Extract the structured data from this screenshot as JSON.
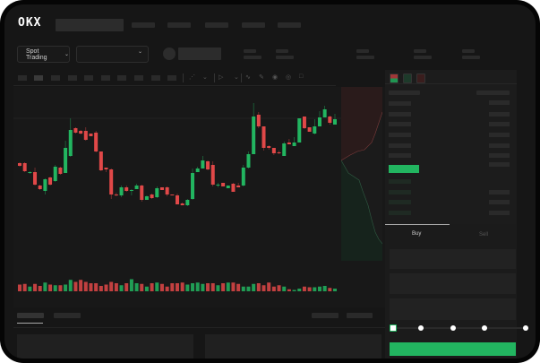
{
  "header": {
    "logo_text": "OKX",
    "trading_mode_label": "Spot Trading",
    "colors": {
      "green": "#22b560",
      "red": "#e04848",
      "background": "#161616"
    }
  },
  "toolbar": {
    "icons": [
      "indicator-icon",
      "chevron-down-icon",
      "drawing-icon",
      "chevron-down-icon",
      "line-icon",
      "ruler-icon",
      "camera-icon",
      "settings-icon",
      "fullscreen-icon"
    ]
  },
  "orderbook": {
    "view_icons": [
      "orderbook-both-icon",
      "orderbook-bids-icon",
      "orderbook-asks-icon"
    ]
  },
  "trade": {
    "buy_tab": "Buy",
    "sell_tab": "Sell",
    "slider_percent": 0
  },
  "chart_data": {
    "type": "candlestick",
    "ohlc": [
      [
        68,
        69,
        64,
        65
      ],
      [
        68,
        69,
        58,
        59
      ],
      [
        57,
        59,
        56,
        58
      ],
      [
        58,
        63,
        43,
        44
      ],
      [
        43,
        44,
        38,
        39
      ],
      [
        37,
        51,
        33,
        50
      ],
      [
        52,
        53,
        43,
        44
      ],
      [
        48,
        66,
        47,
        64
      ],
      [
        63,
        64,
        55,
        56
      ],
      [
        57,
        93,
        57,
        85
      ],
      [
        76,
        118,
        75,
        105
      ],
      [
        107,
        108,
        101,
        102
      ],
      [
        104,
        105,
        100,
        101
      ],
      [
        104,
        108,
        93,
        94
      ],
      [
        101,
        101,
        98,
        98
      ],
      [
        102,
        104,
        80,
        81
      ],
      [
        81,
        81,
        59,
        60
      ],
      [
        63,
        63,
        58,
        61
      ],
      [
        61,
        62,
        28,
        33
      ],
      [
        33,
        35,
        31,
        32
      ],
      [
        32,
        43,
        30,
        41
      ],
      [
        41,
        43,
        36,
        37
      ],
      [
        37,
        39,
        32,
        38
      ],
      [
        39,
        45,
        39,
        43
      ],
      [
        43,
        44,
        25,
        27
      ],
      [
        27,
        32,
        27,
        31
      ],
      [
        33,
        34,
        28,
        29
      ],
      [
        30,
        42,
        29,
        40
      ],
      [
        41,
        41,
        38,
        38
      ],
      [
        41,
        42,
        31,
        33
      ],
      [
        33,
        33,
        32,
        32
      ],
      [
        32,
        34,
        22,
        22
      ],
      [
        23,
        24,
        21,
        21
      ],
      [
        21,
        28,
        20,
        27
      ],
      [
        28,
        62,
        27,
        57
      ],
      [
        58,
        64,
        58,
        62
      ],
      [
        62,
        76,
        62,
        71
      ],
      [
        70,
        71,
        60,
        61
      ],
      [
        66,
        70,
        42,
        44
      ],
      [
        43,
        46,
        41,
        44
      ],
      [
        46,
        46,
        42,
        42
      ],
      [
        40,
        43,
        40,
        43
      ],
      [
        45,
        46,
        36,
        36
      ],
      [
        43,
        46,
        41,
        41
      ],
      [
        43,
        66,
        42,
        63
      ],
      [
        63,
        81,
        62,
        78
      ],
      [
        78,
        135,
        78,
        120
      ],
      [
        122,
        125,
        107,
        109
      ],
      [
        109,
        109,
        82,
        85
      ],
      [
        87,
        88,
        83,
        85
      ],
      [
        85,
        85,
        77,
        79
      ],
      [
        80,
        82,
        78,
        79
      ],
      [
        76,
        92,
        76,
        90
      ],
      [
        91,
        95,
        89,
        89
      ],
      [
        87,
        97,
        87,
        91
      ],
      [
        91,
        118,
        91,
        118
      ],
      [
        120,
        120,
        106,
        107
      ],
      [
        108,
        108,
        103,
        103
      ],
      [
        101,
        117,
        100,
        109
      ],
      [
        109,
        126,
        109,
        119
      ],
      [
        119,
        132,
        119,
        128
      ],
      [
        120,
        121,
        111,
        113
      ],
      [
        111,
        123,
        111,
        117
      ]
    ],
    "volume": [
      10,
      11,
      7,
      11,
      8,
      13,
      10,
      9,
      9,
      10,
      17,
      14,
      17,
      14,
      12,
      12,
      8,
      10,
      14,
      12,
      9,
      12,
      18,
      12,
      11,
      7,
      12,
      13,
      11,
      7,
      12,
      12,
      13,
      10,
      12,
      13,
      11,
      12,
      12,
      9,
      12,
      13,
      13,
      11,
      7,
      7,
      11,
      12,
      9,
      13,
      7,
      9,
      7,
      3,
      2,
      4,
      7,
      6,
      6,
      7,
      8,
      5,
      4
    ]
  }
}
